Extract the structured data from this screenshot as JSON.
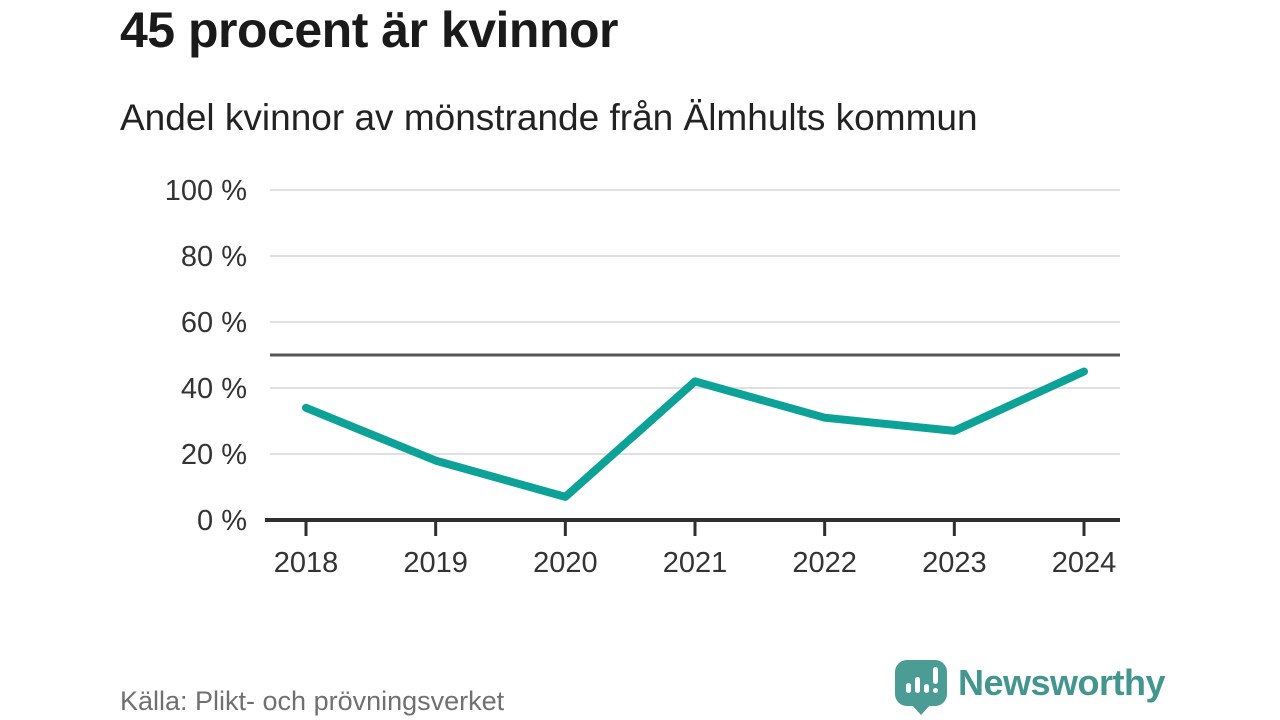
{
  "chart_data": {
    "type": "line",
    "title": "45 procent är kvinnor",
    "subtitle": "Andel kvinnor av mönstrande från Älmhults kommun",
    "categories": [
      "2018",
      "2019",
      "2020",
      "2021",
      "2022",
      "2023",
      "2024"
    ],
    "series": [
      {
        "name": "Andel kvinnor av mönstrande",
        "values": [
          34,
          18,
          7,
          42,
          31,
          27,
          45
        ]
      }
    ],
    "unit": "%",
    "xlabel": "",
    "ylabel": "",
    "ylim": [
      0,
      100
    ],
    "yticks": [
      {
        "value": 0,
        "label": "0 %"
      },
      {
        "value": 20,
        "label": "20 %"
      },
      {
        "value": 40,
        "label": "40 %"
      },
      {
        "value": 60,
        "label": "60 %"
      },
      {
        "value": 80,
        "label": "80 %"
      },
      {
        "value": 100,
        "label": "100 %"
      }
    ],
    "reference_line": {
      "value": 50
    },
    "grid": true,
    "legend": "none",
    "colors": {
      "line": "#0da298",
      "grid": "#e0e0e0",
      "reference": "#555555",
      "axis": "#2f2f2f",
      "tick_text": "#333333"
    }
  },
  "footer": {
    "source": "Källa: Plikt- och prövningsverket",
    "brand": "Newsworthy"
  }
}
